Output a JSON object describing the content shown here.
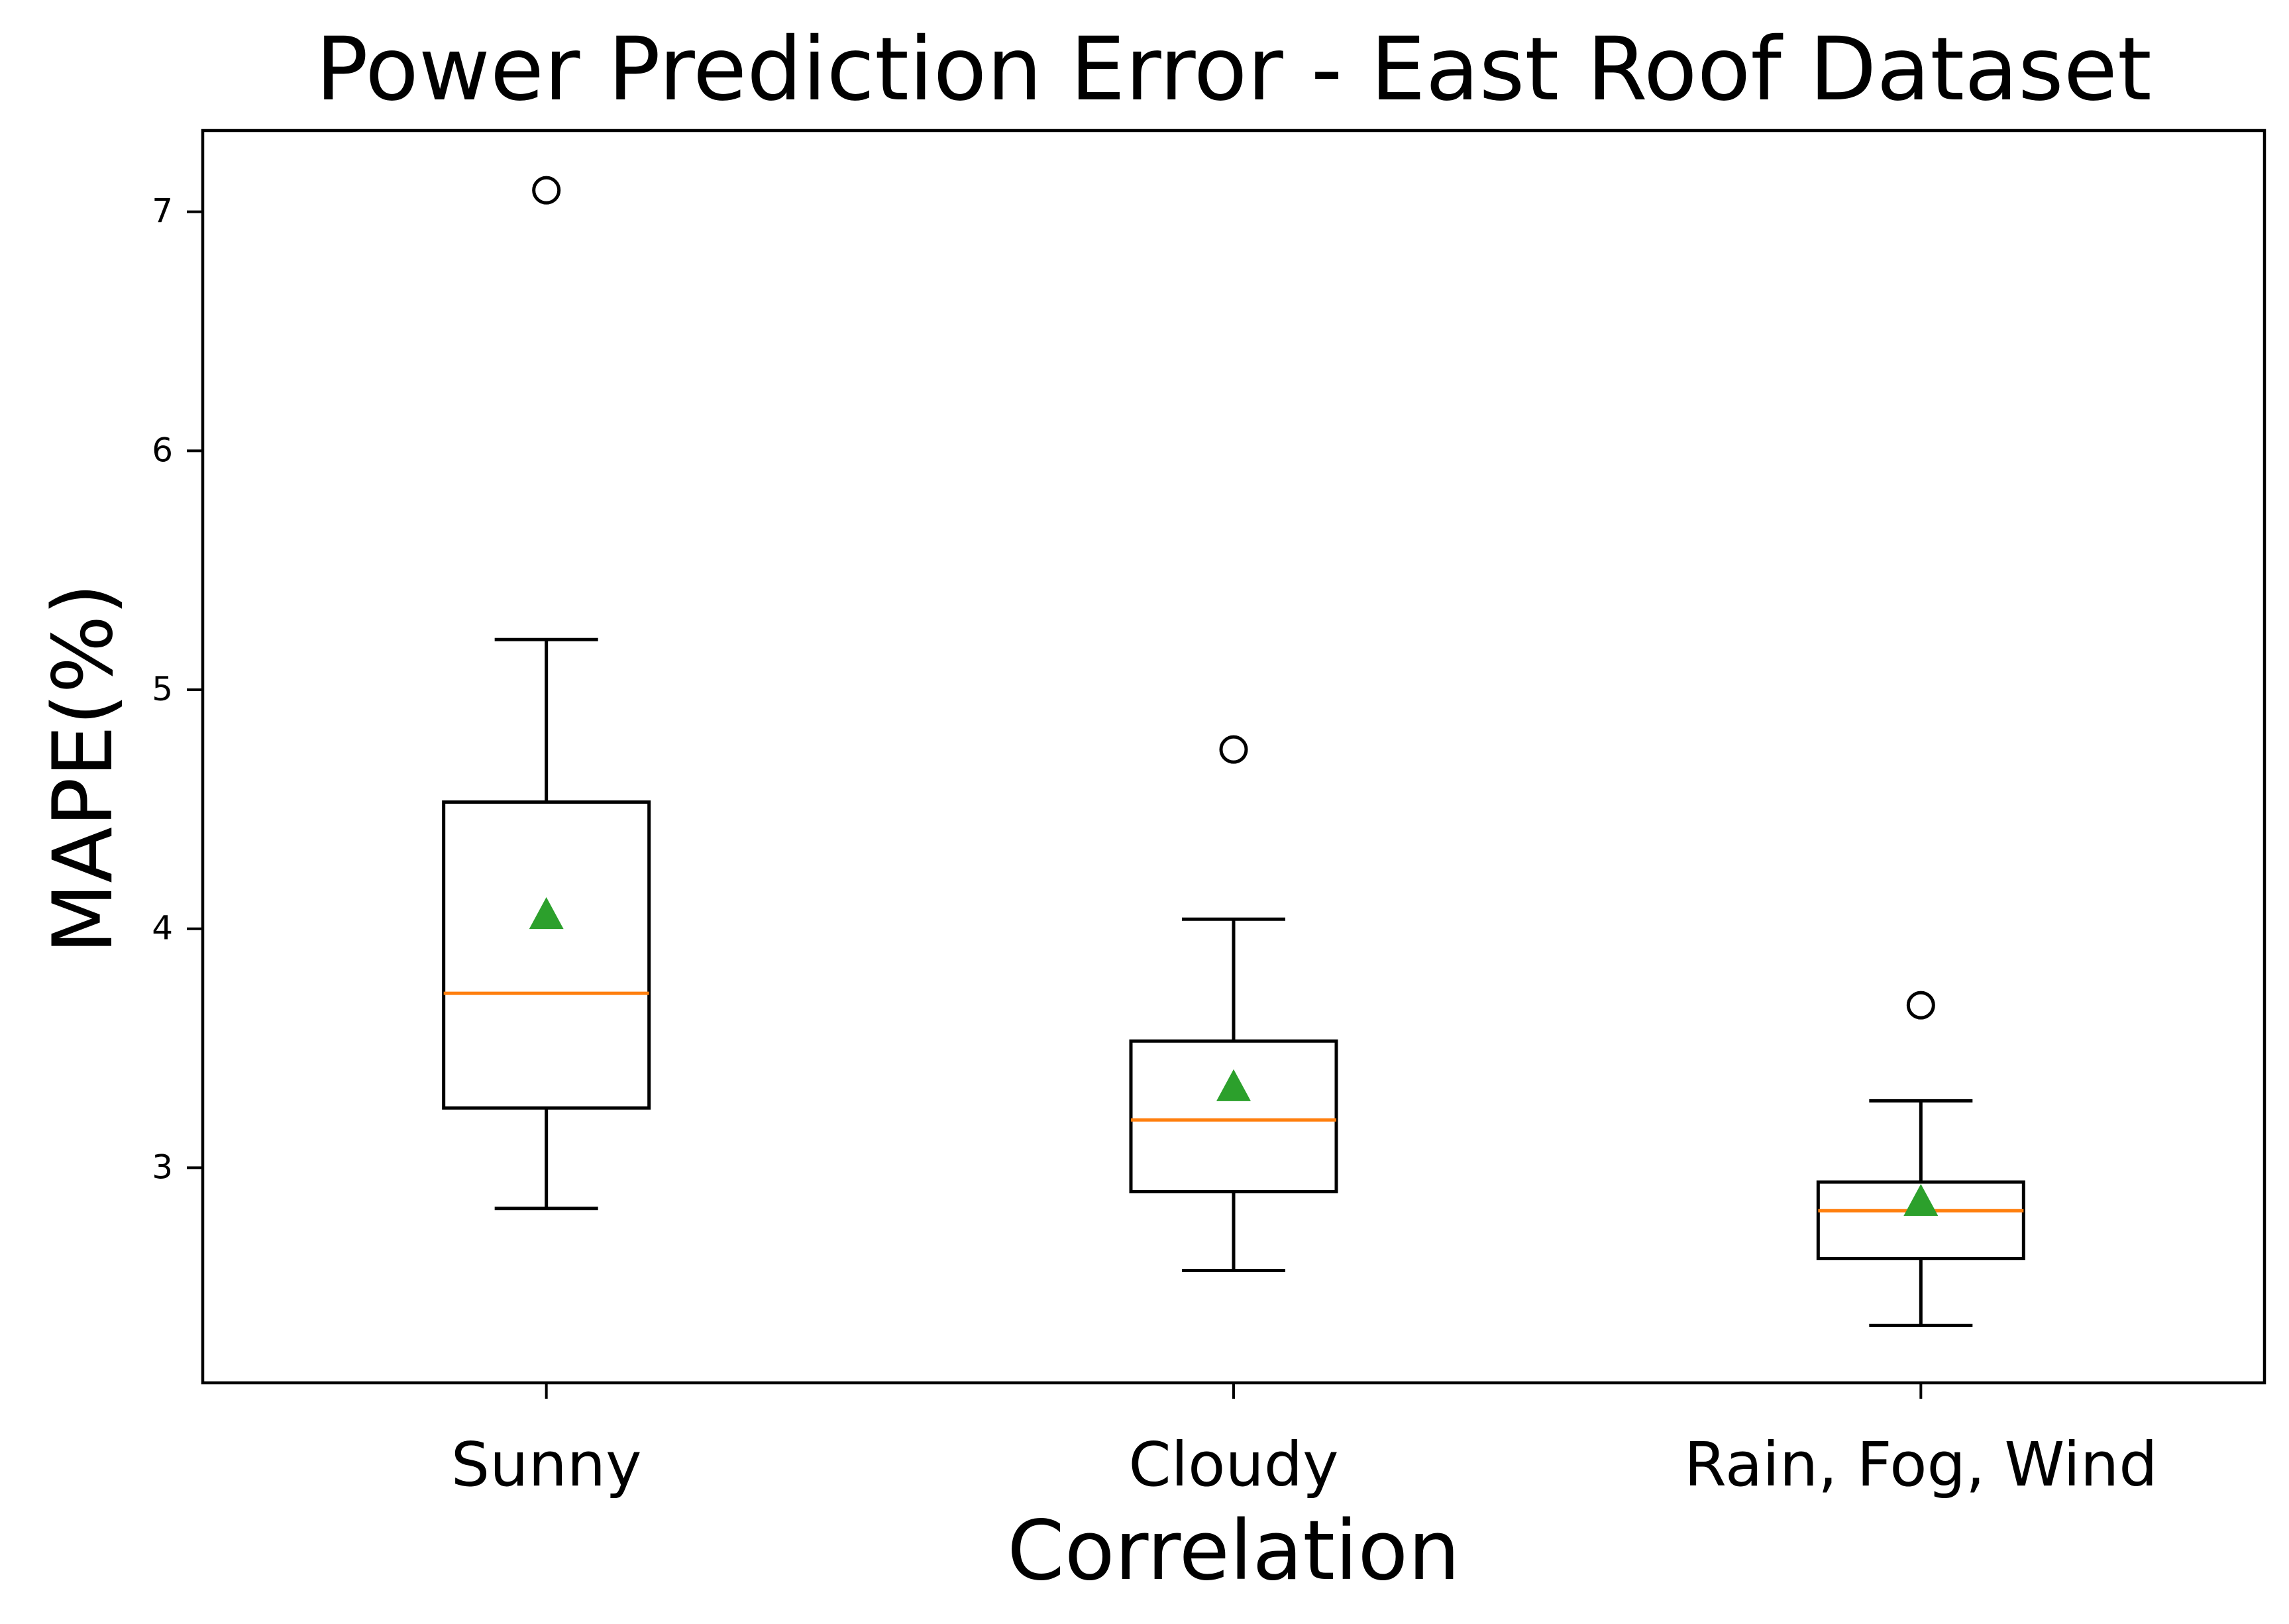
{
  "chart_data": {
    "type": "box",
    "title": "Power Prediction Error - East Roof Dataset",
    "xlabel": "Correlation",
    "ylabel": "MAPE(%)",
    "ylim": [
      2.1,
      7.34
    ],
    "yticks": [
      3,
      4,
      5,
      6,
      7
    ],
    "categories": [
      "Sunny",
      "Cloudy",
      "Rain, Fog, Wind"
    ],
    "grid": false,
    "legend": "none",
    "boxes": [
      {
        "category": "Sunny",
        "whisker_low": 2.83,
        "q1": 3.25,
        "median": 3.73,
        "q3": 4.53,
        "whisker_high": 5.21,
        "mean": 4.06,
        "outliers": [
          7.09
        ]
      },
      {
        "category": "Cloudy",
        "whisker_low": 2.57,
        "q1": 2.9,
        "median": 3.2,
        "q3": 3.53,
        "whisker_high": 4.04,
        "mean": 3.34,
        "outliers": [
          4.75
        ]
      },
      {
        "category": "Rain, Fog, Wind",
        "whisker_low": 2.34,
        "q1": 2.62,
        "median": 2.82,
        "q3": 2.94,
        "whisker_high": 3.28,
        "mean": 2.86,
        "outliers": [
          3.68
        ]
      }
    ],
    "colors": {
      "box": "#000000",
      "median": "#ff7f0e",
      "mean_marker": "#2ca02c",
      "outlier_edge": "#000000"
    }
  }
}
